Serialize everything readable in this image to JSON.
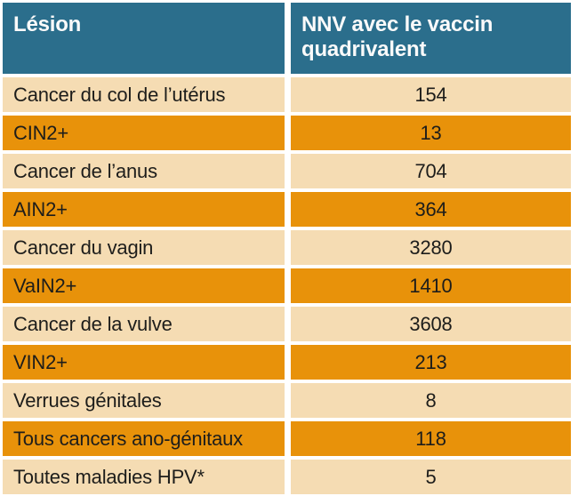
{
  "chart_data": {
    "type": "table",
    "columns": [
      {
        "key": "lesion",
        "label": "Lésion"
      },
      {
        "key": "nnv",
        "label": "NNV avec le vaccin quadrivalent"
      }
    ],
    "rows": [
      {
        "lesion": "Cancer du col de l’utérus",
        "nnv": "154"
      },
      {
        "lesion": "CIN2+",
        "nnv": "13"
      },
      {
        "lesion": "Cancer de l’anus",
        "nnv": "704"
      },
      {
        "lesion": "AIN2+",
        "nnv": "364"
      },
      {
        "lesion": "Cancer du vagin",
        "nnv": "3280"
      },
      {
        "lesion": "VaIN2+",
        "nnv": "1410"
      },
      {
        "lesion": "Cancer de la vulve",
        "nnv": "3608"
      },
      {
        "lesion": "VIN2+",
        "nnv": "213"
      },
      {
        "lesion": "Verrues génitales",
        "nnv": "8"
      },
      {
        "lesion": "Tous cancers ano-génitaux",
        "nnv": "118"
      },
      {
        "lesion": "Toutes maladies HPV*",
        "nnv": "5"
      }
    ]
  },
  "colors": {
    "header_bg": "#2B6E8C",
    "header_text": "#FAFAFA",
    "row_bg": "#F5DCB3",
    "row_alt_bg": "#E8920A",
    "row_text": "#1D1D1B",
    "background": "#FFFFFF"
  }
}
